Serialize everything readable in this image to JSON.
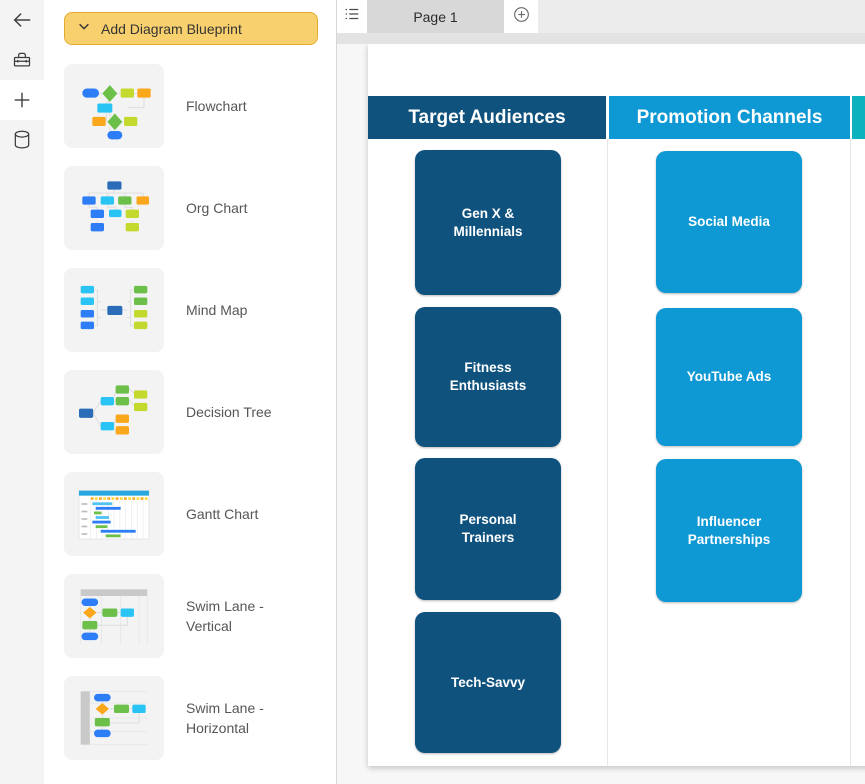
{
  "rail": {
    "items": [
      {
        "icon": "back-arrow-icon"
      },
      {
        "icon": "toolbox-icon"
      },
      {
        "icon": "plus-icon",
        "active": true
      },
      {
        "icon": "database-icon"
      }
    ]
  },
  "sidebar": {
    "add_button_label": "Add Diagram Blueprint",
    "add_button_colors": {
      "background": "#F8D06E",
      "border": "#E2AC30"
    },
    "items": [
      {
        "label": "Flowchart",
        "icon": "flowchart-thumbnail"
      },
      {
        "label": "Org Chart",
        "icon": "org-chart-thumbnail"
      },
      {
        "label": "Mind Map",
        "icon": "mind-map-thumbnail"
      },
      {
        "label": "Decision Tree",
        "icon": "decision-tree-thumbnail"
      },
      {
        "label": "Gantt Chart",
        "icon": "gantt-chart-thumbnail"
      },
      {
        "label": "Swim Lane - Vertical",
        "icon": "swim-lane-vertical-thumbnail"
      },
      {
        "label": "Swim Lane - Horizontal",
        "icon": "swim-lane-horizontal-thumbnail"
      }
    ]
  },
  "tabs": {
    "page_tab_label": "Page 1",
    "icons": [
      "page-list-icon",
      "add-page-icon"
    ]
  },
  "diagram": {
    "lanes": [
      {
        "title": "Target Audiences",
        "color": "#0F527D",
        "boxes": [
          "Gen X & Millennials",
          "Fitness Enthusiasts",
          "Personal Trainers",
          "Tech-Savvy"
        ]
      },
      {
        "title": "Promotion Channels",
        "color": "#0E98D4",
        "boxes": [
          "Social Media",
          "YouTube Ads",
          "Influencer Partnerships"
        ]
      },
      {
        "title": "",
        "color": "#0CB2BE",
        "boxes": []
      }
    ]
  }
}
